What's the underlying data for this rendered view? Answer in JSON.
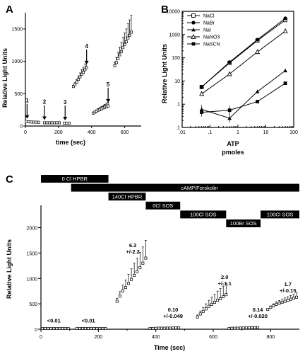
{
  "chart_data": [
    {
      "panel": "A",
      "type": "scatter",
      "xlabel": "time (sec)",
      "ylabel": "Relative Light Units",
      "xlim": [
        0,
        700
      ],
      "ylim": [
        0,
        1750
      ],
      "xticks": [
        0,
        200,
        400,
        600
      ],
      "yticks": [
        0,
        500,
        1000,
        1500
      ],
      "series": [
        {
          "x": [
            5,
            20,
            35,
            50,
            65,
            80
          ],
          "y": [
            70,
            65,
            62,
            60,
            60,
            58
          ]
        },
        {
          "x": [
            115,
            130,
            145,
            160,
            175,
            190,
            205
          ],
          "y": [
            50,
            50,
            50,
            50,
            50,
            50,
            50
          ]
        },
        {
          "x": [
            235,
            250,
            265
          ],
          "y": [
            45,
            45,
            45
          ]
        },
        {
          "x": [
            290,
            300,
            310,
            320,
            330,
            340,
            350,
            360,
            370
          ],
          "y": [
            610,
            640,
            680,
            720,
            760,
            800,
            830,
            870,
            900
          ],
          "err": [
            20,
            30,
            40,
            50,
            60,
            70,
            80,
            90,
            100
          ]
        },
        {
          "x": [
            410,
            420,
            430,
            440,
            450,
            460,
            470,
            480,
            490,
            500
          ],
          "y": [
            200,
            215,
            230,
            245,
            255,
            265,
            280,
            290,
            300,
            310
          ],
          "err": [
            10,
            15,
            20,
            25,
            30,
            35,
            40,
            45,
            50,
            55
          ]
        },
        {
          "x": [
            540,
            550,
            560,
            570,
            580,
            590,
            600,
            610,
            620,
            630,
            640
          ],
          "y": [
            930,
            980,
            1040,
            1100,
            1150,
            1210,
            1260,
            1300,
            1360,
            1400,
            1450
          ],
          "err": [
            60,
            80,
            100,
            120,
            140,
            160,
            180,
            200,
            220,
            240,
            260
          ]
        }
      ],
      "annotations": [
        {
          "label": "1",
          "x": 10,
          "y": 80
        },
        {
          "label": "2",
          "x": 115,
          "y": 60
        },
        {
          "label": "3",
          "x": 240,
          "y": 55
        },
        {
          "label": "4",
          "x": 370,
          "y": 920
        },
        {
          "label": "5",
          "x": 500,
          "y": 330
        }
      ]
    },
    {
      "panel": "B",
      "type": "line",
      "xlabel": "ATP",
      "xlabel2": "pmoles",
      "ylabel": "Relative Light Units",
      "xscale": "log",
      "yscale": "log",
      "xlim": [
        0.01,
        100
      ],
      "ylim": [
        0.1,
        10000
      ],
      "xtick_labels": [
        ".01",
        ".1",
        "1",
        "10",
        "100"
      ],
      "ytick_labels": [
        ".1",
        "1",
        "10",
        "100",
        "1000",
        "10000"
      ],
      "legend": "top-left",
      "x": [
        0.05,
        0.5,
        5,
        50
      ],
      "series": [
        {
          "name": "NaCl",
          "marker": "square-open",
          "values": [
            5.5,
            60,
            550,
            4200
          ]
        },
        {
          "name": "NaBr",
          "marker": "circle-filled",
          "values": [
            5.5,
            65,
            600,
            5000
          ]
        },
        {
          "name": "NaI",
          "marker": "triangle-filled",
          "values": [
            0.6,
            0.25,
            3.5,
            28
          ]
        },
        {
          "name": "NaNO3",
          "marker": "triangle-open",
          "values": [
            2.8,
            20,
            180,
            1400
          ]
        },
        {
          "name": "NaSCN",
          "marker": "square-filled",
          "values": [
            0.45,
            0.55,
            1.3,
            8
          ]
        }
      ]
    },
    {
      "panel": "C",
      "type": "scatter",
      "xlabel": "Time (sec)",
      "ylabel": "Relative Light Units",
      "xlim": [
        0,
        900
      ],
      "ylim": [
        0,
        2300
      ],
      "xticks": [
        0,
        200,
        400,
        600,
        800
      ],
      "yticks": [
        0,
        500,
        1000,
        1500,
        2000
      ],
      "conditions": [
        {
          "label": "0 Cl HPBR",
          "start": 0,
          "end": 235,
          "row": 0
        },
        {
          "label": "cAMP/Forskolin",
          "start": 105,
          "end": 900,
          "row": 1
        },
        {
          "label": "140Cl HPBR",
          "start": 235,
          "end": 365,
          "row": 2
        },
        {
          "label": "0Cl SOS",
          "start": 365,
          "end": 485,
          "row": 3
        },
        {
          "label": "100Cl SOS",
          "start": 485,
          "end": 645,
          "row": 4
        },
        {
          "label": "100Br SOS",
          "start": 645,
          "end": 765,
          "row": 5
        },
        {
          "label": "100Cl SOS",
          "start": 765,
          "end": 900,
          "row": 4
        }
      ],
      "rate_labels": [
        {
          "line1": "<0.01",
          "line2": "",
          "x": 45,
          "y": 130
        },
        {
          "line1": "<0.01",
          "line2": "",
          "x": 165,
          "y": 130
        },
        {
          "line1": "6.3",
          "line2": "+/-2.2",
          "x": 320,
          "y": 1620
        },
        {
          "line1": "0.10",
          "line2": "+/-0.049",
          "x": 460,
          "y": 350
        },
        {
          "line1": "2.0",
          "line2": "+/-1.1",
          "x": 640,
          "y": 990
        },
        {
          "line1": "0.14",
          "line2": "+/-0.020",
          "x": 755,
          "y": 350
        },
        {
          "line1": "1.7",
          "line2": "+/-0.15",
          "x": 860,
          "y": 850
        }
      ],
      "series": [
        {
          "x": [
            5,
            15,
            25,
            35,
            45,
            55,
            65,
            75,
            85,
            95
          ],
          "y": [
            15,
            15,
            15,
            15,
            15,
            15,
            15,
            15,
            15,
            15
          ]
        },
        {
          "x": [
            125,
            135,
            145,
            155,
            165,
            175,
            185,
            195,
            205,
            215,
            225
          ],
          "y": [
            15,
            15,
            15,
            15,
            15,
            15,
            15,
            15,
            15,
            15,
            15
          ]
        },
        {
          "x": [
            265,
            275,
            285,
            295,
            305,
            315,
            325,
            335,
            345,
            355,
            365
          ],
          "y": [
            550,
            650,
            750,
            820,
            900,
            980,
            1060,
            1130,
            1210,
            1300,
            1400
          ],
          "err": [
            60,
            90,
            120,
            150,
            180,
            210,
            240,
            270,
            300,
            320,
            350
          ]
        },
        {
          "x": [
            380,
            390,
            400,
            410,
            420,
            430,
            440,
            450,
            460,
            470,
            480
          ],
          "y": [
            15,
            15,
            18,
            20,
            20,
            20,
            22,
            22,
            25,
            25,
            28
          ]
        },
        {
          "x": [
            545,
            555,
            565,
            575,
            585,
            595,
            605,
            615,
            625,
            635,
            645
          ],
          "y": [
            240,
            300,
            350,
            400,
            450,
            490,
            530,
            570,
            600,
            640,
            680
          ],
          "err": [
            40,
            60,
            80,
            100,
            120,
            140,
            160,
            180,
            200,
            210,
            220
          ]
        },
        {
          "x": [
            655,
            665,
            675,
            685,
            695,
            705,
            715,
            725,
            735,
            745,
            755
          ],
          "y": [
            15,
            18,
            20,
            20,
            22,
            24,
            26,
            28,
            30,
            30,
            32
          ]
        },
        {
          "x": [
            790,
            800,
            810,
            820,
            830,
            840,
            850,
            860,
            870,
            880,
            890
          ],
          "y": [
            390,
            430,
            460,
            490,
            510,
            530,
            550,
            570,
            590,
            610,
            630
          ],
          "err": [
            20,
            30,
            40,
            50,
            55,
            60,
            65,
            70,
            75,
            80,
            85
          ]
        }
      ]
    }
  ]
}
